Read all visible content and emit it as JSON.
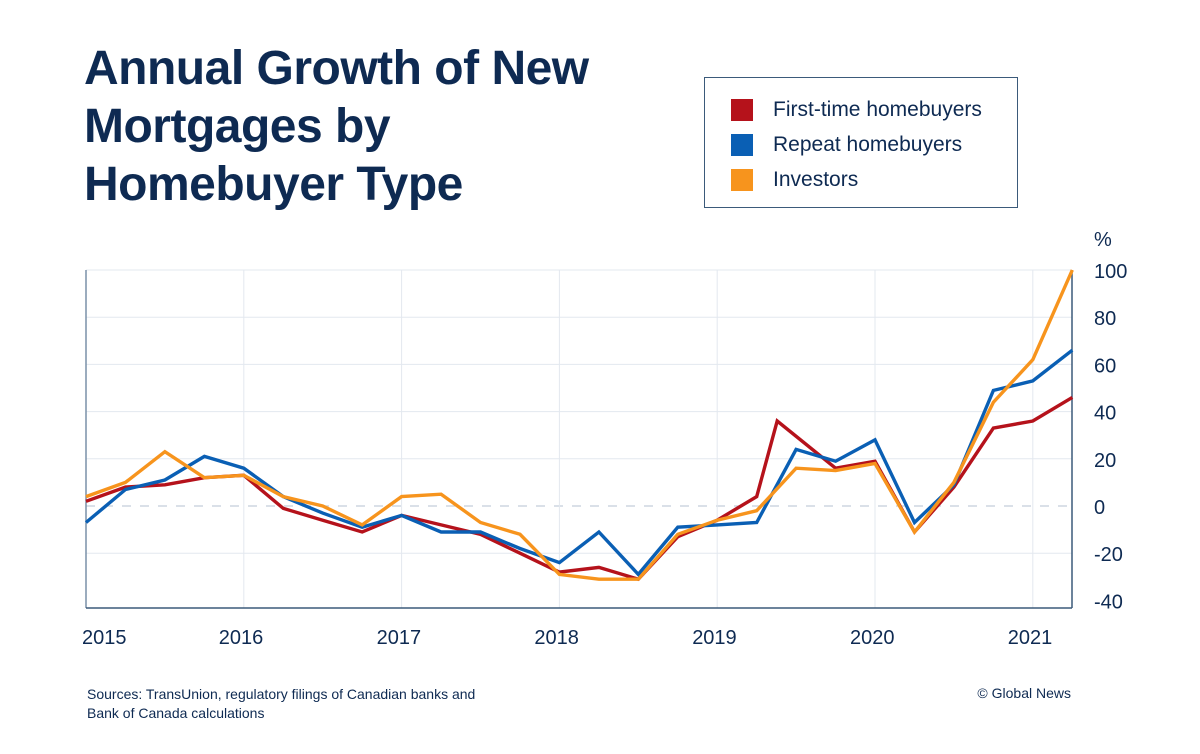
{
  "title": "Annual Growth of New Mortgages by Homebuyer Type",
  "legend": [
    {
      "label": "First-time homebuyers",
      "color": "#b5121b"
    },
    {
      "label": "Repeat homebuyers",
      "color": "#0a5fb4"
    },
    {
      "label": "Investors",
      "color": "#f7941d"
    }
  ],
  "footer": {
    "source": "Sources: TransUnion, regulatory filings of Canadian banks and Bank of Canada calculations",
    "credit": "© Global News"
  },
  "chart_data": {
    "type": "line",
    "title": "Annual Growth of New Mortgages by Homebuyer Type",
    "xlabel": "",
    "ylabel": "%",
    "xlim": [
      2015,
      2021.25
    ],
    "ylim": [
      -40,
      100
    ],
    "x_ticks": [
      {
        "value": 2015,
        "label": "2015"
      },
      {
        "value": 2016,
        "label": "2016"
      },
      {
        "value": 2017,
        "label": "2017"
      },
      {
        "value": 2018,
        "label": "2018"
      },
      {
        "value": 2019,
        "label": "2019"
      },
      {
        "value": 2020,
        "label": "2020"
      },
      {
        "value": 2021,
        "label": "2021"
      }
    ],
    "y_ticks": [
      100,
      80,
      60,
      40,
      20,
      0,
      -20,
      -40
    ],
    "y_tick_labels": [
      "100",
      "80",
      "60",
      "40",
      "20",
      "0",
      "-20",
      "-40"
    ],
    "grid": true,
    "zero_line": "dashed",
    "legend_position": "top-right",
    "series": [
      {
        "name": "First-time homebuyers",
        "color": "#b5121b",
        "x": [
          2015,
          2015.25,
          2015.5,
          2015.75,
          2016,
          2016.25,
          2016.5,
          2016.75,
          2017,
          2017.25,
          2017.5,
          2017.75,
          2018,
          2018.25,
          2018.5,
          2018.75,
          2019,
          2019.25,
          2019.38,
          2019.75,
          2020,
          2020.25,
          2020.5,
          2020.75,
          2021,
          2021.25
        ],
        "y": [
          2,
          8,
          9,
          12,
          13,
          -1,
          -6,
          -11,
          -4,
          -8,
          -12,
          -20,
          -28,
          -26,
          -31,
          -13,
          -6,
          4,
          36,
          16,
          19,
          -11,
          8,
          33,
          36,
          46
        ]
      },
      {
        "name": "Repeat homebuyers",
        "color": "#0a5fb4",
        "x": [
          2015,
          2015.25,
          2015.5,
          2015.75,
          2016,
          2016.25,
          2016.5,
          2016.75,
          2017,
          2017.25,
          2017.5,
          2017.75,
          2018,
          2018.25,
          2018.5,
          2018.75,
          2019,
          2019.25,
          2019.5,
          2019.75,
          2020,
          2020.25,
          2020.5,
          2020.75,
          2021,
          2021.25
        ],
        "y": [
          -7,
          7,
          11,
          21,
          16,
          4,
          -3,
          -9,
          -4,
          -11,
          -11,
          -18,
          -24,
          -11,
          -29,
          -9,
          -8,
          -7,
          24,
          19,
          28,
          -7,
          9,
          49,
          53,
          66
        ]
      },
      {
        "name": "Investors",
        "color": "#f7941d",
        "x": [
          2015,
          2015.25,
          2015.5,
          2015.75,
          2016,
          2016.25,
          2016.5,
          2016.75,
          2017,
          2017.25,
          2017.5,
          2017.75,
          2018,
          2018.25,
          2018.5,
          2018.75,
          2019,
          2019.25,
          2019.5,
          2019.75,
          2020,
          2020.25,
          2020.5,
          2020.75,
          2021,
          2021.25
        ],
        "y": [
          4,
          10,
          23,
          12,
          13,
          4,
          0,
          -8,
          4,
          5,
          -7,
          -12,
          -29,
          -31,
          -31,
          -12,
          -6,
          -2,
          16,
          15,
          18,
          -11,
          10,
          44,
          62,
          100
        ]
      }
    ]
  }
}
